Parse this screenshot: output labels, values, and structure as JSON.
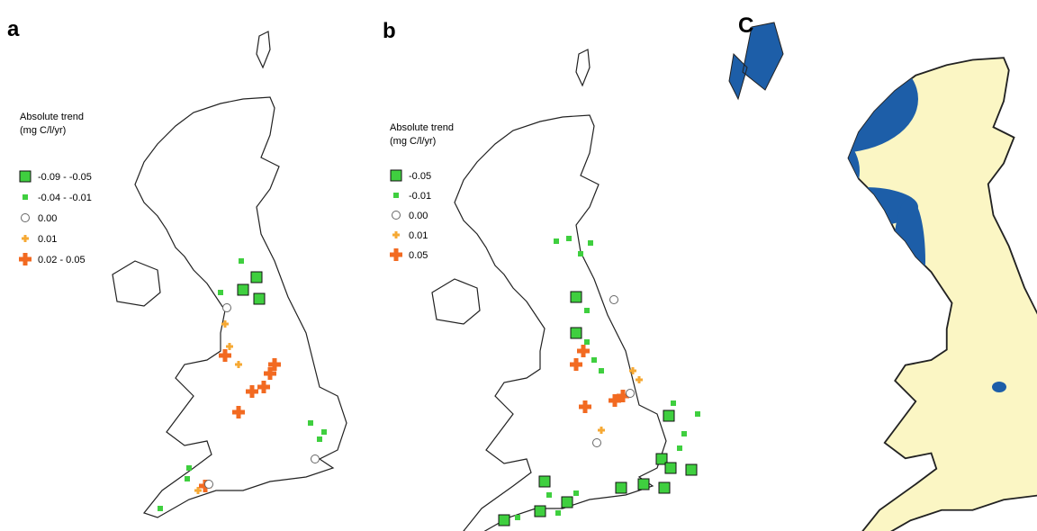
{
  "panels": [
    {
      "label": "a",
      "legend": {
        "title": "Absolute trend",
        "unit": "(mg C/l/yr)",
        "entries": [
          "-0.09 - -0.05",
          "-0.04 - -0.01",
          "0.00",
          "0.01",
          "0.02 - 0.05"
        ]
      }
    },
    {
      "label": "b",
      "legend": {
        "title": "Absolute trend",
        "unit": "(mg C/l/yr)",
        "entries": [
          "-0.05",
          "-0.01",
          "0.00",
          "0.01",
          "0.05"
        ]
      }
    },
    {
      "label": "C"
    }
  ]
}
